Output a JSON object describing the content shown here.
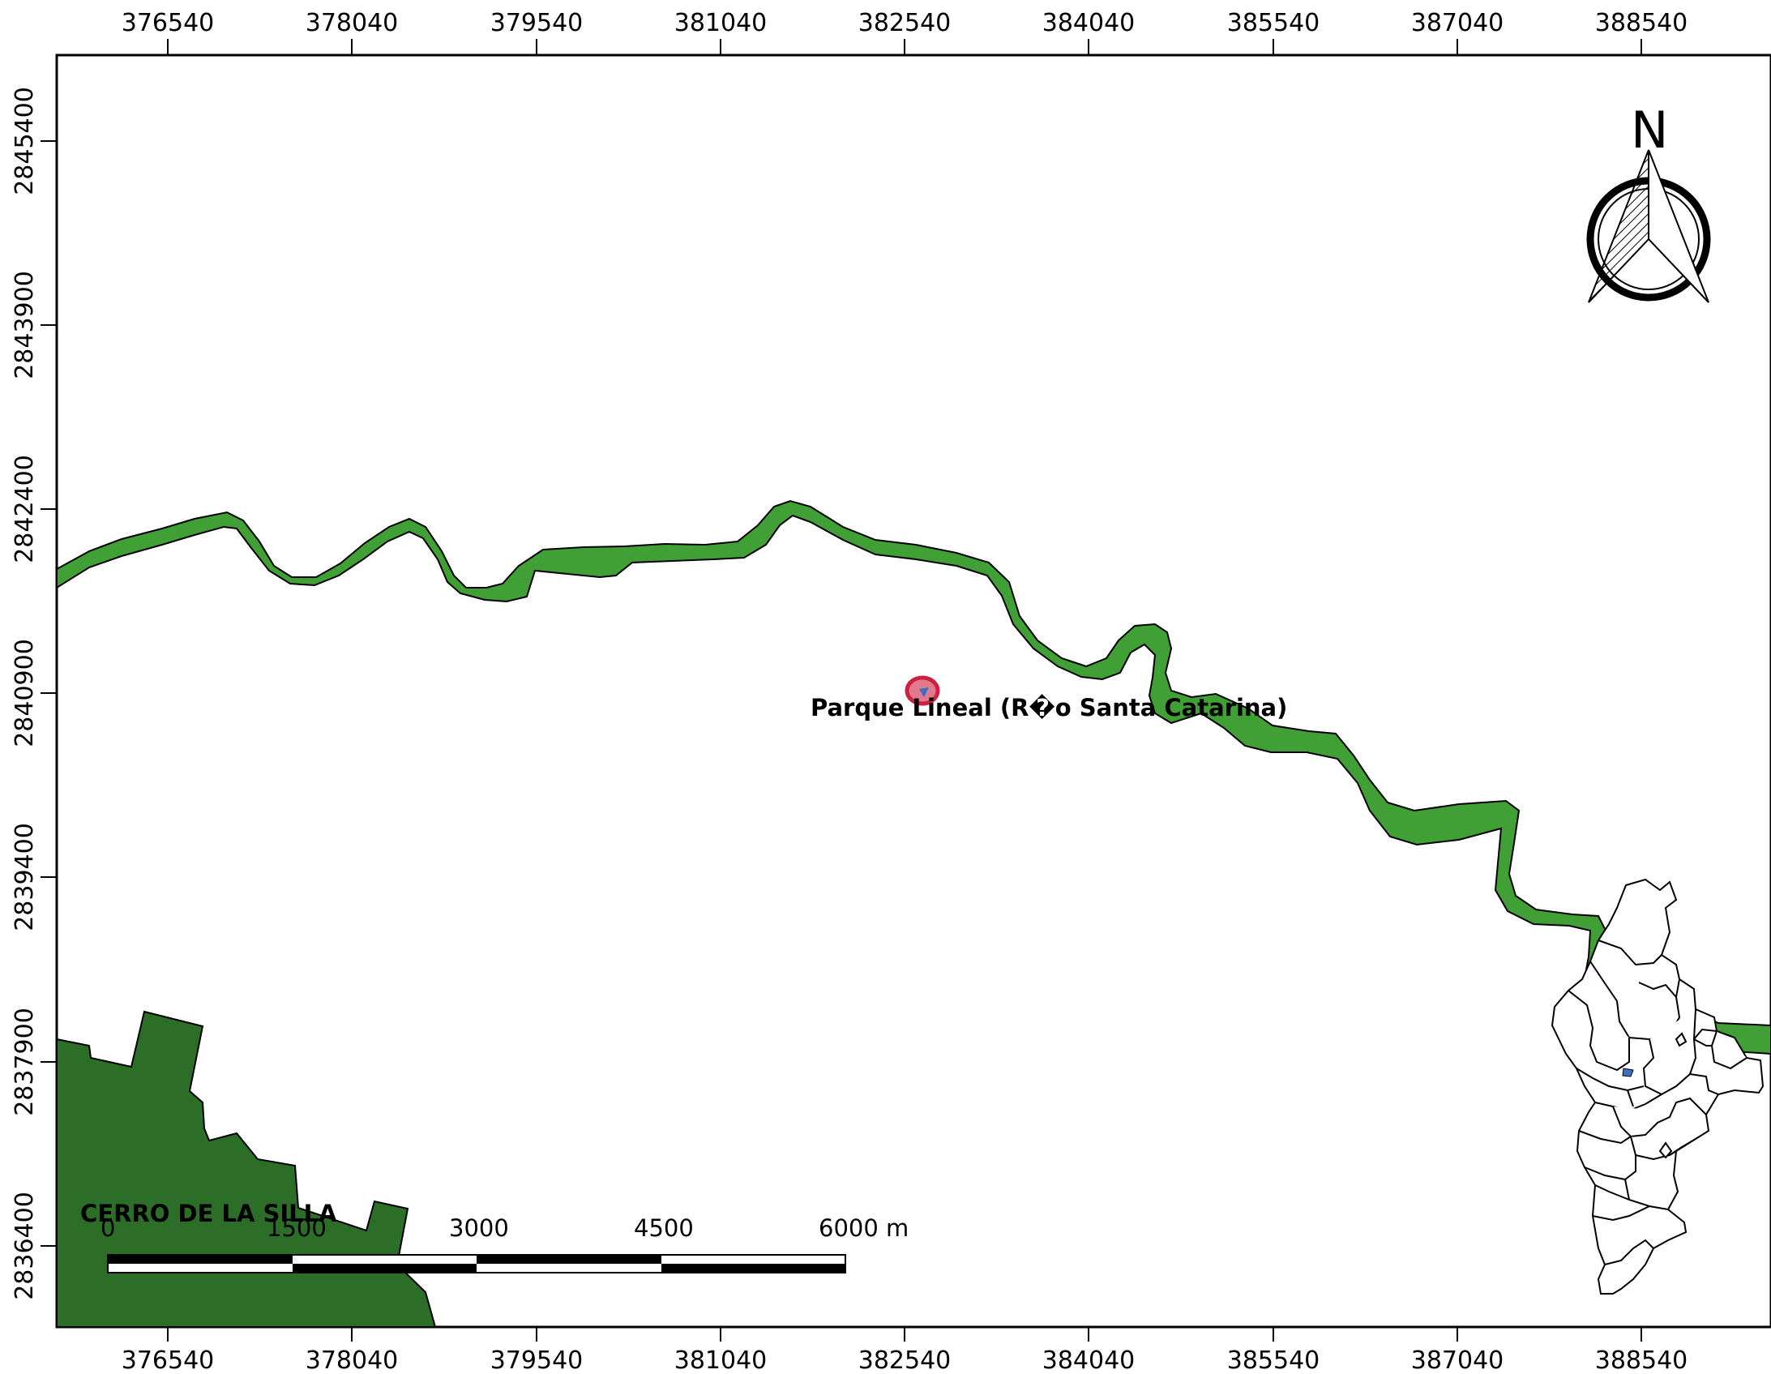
{
  "map": {
    "x_ticks": [
      "376540",
      "378040",
      "379540",
      "381040",
      "382540",
      "384040",
      "385540",
      "387040",
      "388540"
    ],
    "y_ticks": [
      "2845400",
      "2843900",
      "2842400",
      "2840900",
      "2839400",
      "2837900",
      "2836400"
    ],
    "labels": {
      "park": "Parque Lineal (R�o Santa Catarina)",
      "cerro": "CERRO DE LA SILLA"
    },
    "north_arrow": {
      "letter": "N",
      "icon": "north-arrow-icon"
    },
    "scale_bar": {
      "labels": [
        "0",
        "1500",
        "3000",
        "4500",
        "6000 m"
      ]
    },
    "colors": {
      "river": "#41a035",
      "cerro": "#2c6e27",
      "park_outline": "#d0203f",
      "park_fill": "#e07a8c",
      "park_point": "#3a6fc4",
      "frame": "#000000"
    }
  }
}
